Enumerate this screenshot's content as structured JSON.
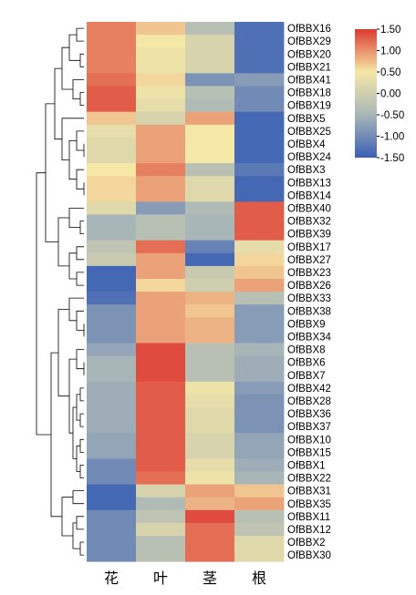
{
  "chart_data": {
    "type": "heatmap",
    "title": "",
    "columns": [
      "花",
      "叶",
      "茎",
      "根"
    ],
    "rows": [
      "OfBBX16",
      "OfBBX29",
      "OfBBX20",
      "OfBBX21",
      "OfBBX41",
      "OfBBX18",
      "OfBBX19",
      "OfBBX5",
      "OfBBX25",
      "OfBBX4",
      "OfBBX24",
      "OfBBX3",
      "OfBBX13",
      "OfBBX14",
      "OfBBX40",
      "OfBBX32",
      "OfBBX39",
      "OfBBX17",
      "OfBBX27",
      "OfBBX23",
      "OfBBX26",
      "OfBBX33",
      "OfBBX38",
      "OfBBX9",
      "OfBBX34",
      "OfBBX8",
      "OfBBX6",
      "OfBBX7",
      "OfBBX42",
      "OfBBX28",
      "OfBBX36",
      "OfBBX37",
      "OfBBX10",
      "OfBBX15",
      "OfBBX1",
      "OfBBX22",
      "OfBBX31",
      "OfBBX35",
      "OfBBX11",
      "OfBBX12",
      "OfBBX2",
      "OfBBX30"
    ],
    "values": [
      [
        1.1,
        0.7,
        -0.3,
        -1.3
      ],
      [
        1.1,
        0.5,
        0.1,
        -1.3
      ],
      [
        1.1,
        0.4,
        0.1,
        -1.3
      ],
      [
        1.1,
        0.4,
        0.1,
        -1.3
      ],
      [
        1.2,
        0.6,
        -0.9,
        -0.8
      ],
      [
        1.3,
        0.4,
        -0.3,
        -1.0
      ],
      [
        1.3,
        0.3,
        -0.4,
        -1.0
      ],
      [
        0.7,
        0.1,
        0.9,
        -1.4
      ],
      [
        0.3,
        0.9,
        0.5,
        -1.4
      ],
      [
        0.2,
        0.9,
        0.5,
        -1.4
      ],
      [
        0.2,
        0.9,
        0.5,
        -1.4
      ],
      [
        0.5,
        1.1,
        -0.3,
        -1.2
      ],
      [
        0.6,
        0.9,
        0.2,
        -1.4
      ],
      [
        0.6,
        0.9,
        0.2,
        -1.4
      ],
      [
        0.2,
        -0.8,
        -0.4,
        1.3
      ],
      [
        -0.5,
        -0.3,
        -0.5,
        1.3
      ],
      [
        -0.5,
        -0.3,
        -0.5,
        1.3
      ],
      [
        -0.2,
        1.2,
        -1.1,
        0.3
      ],
      [
        -0.1,
        0.9,
        -1.4,
        0.6
      ],
      [
        -1.4,
        0.9,
        -0.1,
        0.7
      ],
      [
        -1.4,
        0.6,
        0.0,
        0.9
      ],
      [
        -1.3,
        0.9,
        0.8,
        -0.3
      ],
      [
        -0.9,
        0.9,
        0.7,
        -0.8
      ],
      [
        -0.9,
        0.9,
        0.8,
        -0.8
      ],
      [
        -0.9,
        0.9,
        0.8,
        -0.8
      ],
      [
        -0.7,
        1.4,
        -0.3,
        -0.5
      ],
      [
        -0.5,
        1.4,
        -0.3,
        -0.6
      ],
      [
        -0.5,
        1.4,
        -0.3,
        -0.6
      ],
      [
        -0.6,
        1.3,
        0.4,
        -0.8
      ],
      [
        -0.6,
        1.3,
        0.3,
        -0.9
      ],
      [
        -0.6,
        1.3,
        0.2,
        -0.9
      ],
      [
        -0.6,
        1.3,
        0.2,
        -0.9
      ],
      [
        -0.7,
        1.3,
        0.1,
        -0.7
      ],
      [
        -0.7,
        1.3,
        0.1,
        -0.7
      ],
      [
        -1.0,
        1.3,
        0.3,
        -0.6
      ],
      [
        -1.0,
        1.2,
        0.4,
        -0.5
      ],
      [
        -1.4,
        0.1,
        0.9,
        0.7
      ],
      [
        -1.4,
        -0.4,
        0.8,
        0.9
      ],
      [
        -1.0,
        -0.2,
        1.4,
        -0.3
      ],
      [
        -1.0,
        0.1,
        1.2,
        -0.2
      ],
      [
        -1.0,
        -0.3,
        1.2,
        0.2
      ],
      [
        -1.0,
        -0.3,
        1.2,
        0.2
      ]
    ],
    "colorbar": {
      "min": -1.5,
      "max": 1.5,
      "ticks": [
        1.5,
        1.0,
        0.5,
        0.0,
        -0.5,
        -1.0,
        -1.5
      ],
      "tick_labels": [
        "1.50",
        "1.00",
        "0.50",
        "0.00",
        "-0.50",
        "-1.00",
        "-1.50"
      ],
      "colors": [
        "#3a5fb4",
        "#a9b6b8",
        "#f5e7a6",
        "#dc3b33"
      ]
    },
    "dendrogram": "row-clustering tree on left",
    "legend_position": "top-right"
  }
}
